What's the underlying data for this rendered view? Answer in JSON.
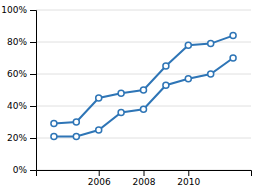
{
  "chart_data": {
    "type": "line",
    "x": [
      2004,
      2005,
      2006,
      2007,
      2008,
      2009,
      2010,
      2011,
      2012
    ],
    "series": [
      {
        "color": "#2E75B6",
        "marker": "circle",
        "values": [
          0.29,
          0.3,
          0.45,
          0.48,
          0.5,
          0.65,
          0.78,
          0.79,
          0.84
        ]
      },
      {
        "color": "#2E75B6",
        "marker": "circle",
        "values": [
          0.21,
          0.21,
          0.25,
          0.36,
          0.38,
          0.53,
          0.57,
          0.6,
          0.7
        ]
      }
    ],
    "xlim": [
      2003.2,
      2012.8
    ],
    "xticks": [
      2006,
      2008,
      2010
    ],
    "ylim": [
      0.0,
      1.0
    ],
    "yticks": [
      {
        "value": 0.0,
        "label": "0%"
      },
      {
        "value": 0.2,
        "label": "20%"
      },
      {
        "value": 0.4,
        "label": "40%"
      },
      {
        "value": 0.6,
        "label": "60%"
      },
      {
        "value": 0.8,
        "label": "80%"
      },
      {
        "value": 1.0,
        "label": "100%"
      }
    ],
    "grid": "y"
  }
}
